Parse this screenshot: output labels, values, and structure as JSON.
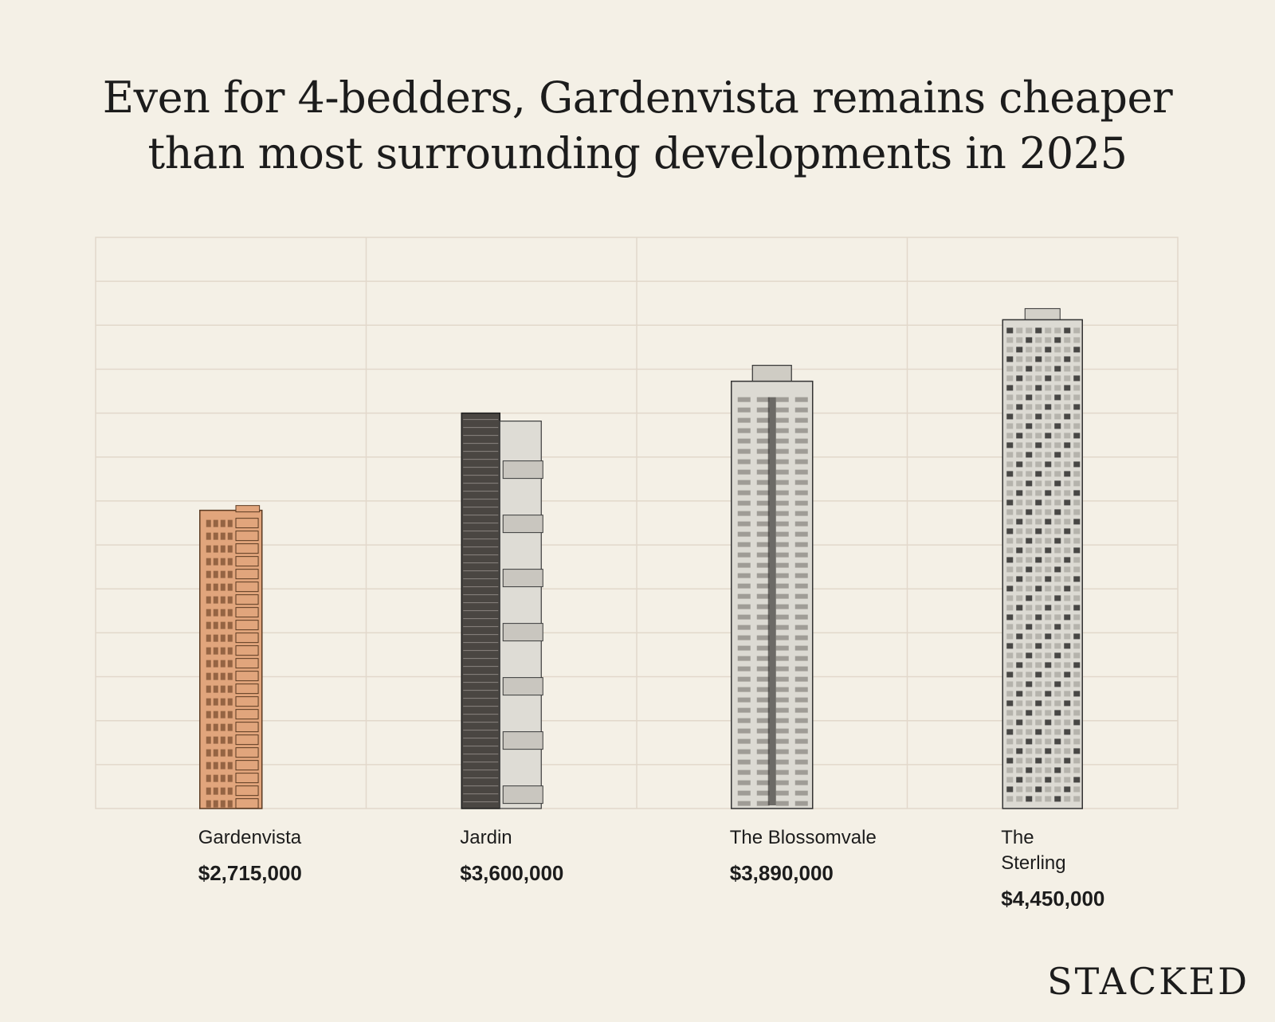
{
  "title_line1": "Even for 4-bedders, Gardenvista remains cheaper",
  "title_line2": "than most surrounding developments in 2025",
  "brand": "STACKED",
  "colors": {
    "background": "#f4f0e6",
    "grid": "#e2d8cb",
    "gardenvista": "#e1a57c",
    "gray_building": "#dcdad3"
  },
  "chart_data": {
    "type": "bar",
    "title": "Even for 4-bedders, Gardenvista remains cheaper than most surrounding developments in 2025",
    "categories": [
      "Gardenvista",
      "Jardin",
      "The Blossomvale",
      "The Sterling"
    ],
    "values": [
      2715000,
      3600000,
      3890000,
      4450000
    ],
    "value_labels": [
      "$2,715,000",
      "$3,600,000",
      "$3,890,000",
      "$4,450,000"
    ],
    "name_lines": [
      [
        "Gardenvista"
      ],
      [
        "Jardin"
      ],
      [
        "The Blossomvale"
      ],
      [
        "The",
        "Sterling"
      ]
    ],
    "bar_style": [
      "tower-orange",
      "tower-dark",
      "tower-light",
      "tower-grid"
    ],
    "ylim": [
      0,
      5200000
    ],
    "grid": true,
    "xlabel": "",
    "ylabel": ""
  }
}
